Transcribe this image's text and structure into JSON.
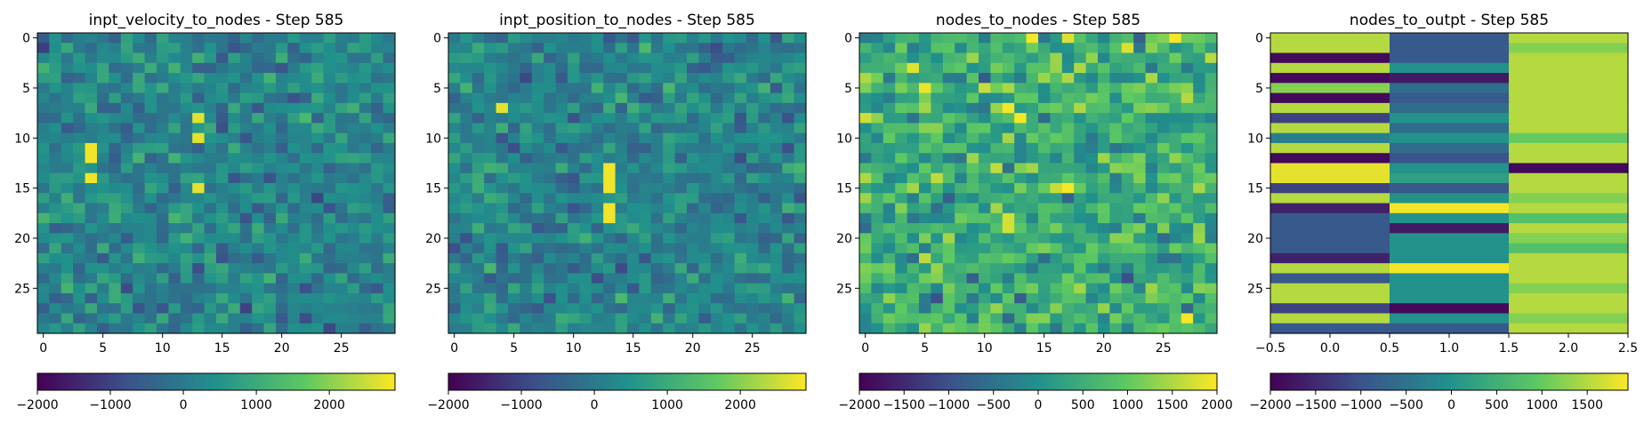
{
  "colormap": [
    "#440154",
    "#3b528b",
    "#21918c",
    "#5ec962",
    "#fde725"
  ],
  "chart_data": [
    {
      "type": "heatmap",
      "title": "inpt_velocity_to_nodes - Step 585",
      "rows": 30,
      "cols": 30,
      "xlim": [
        -0.5,
        29.5
      ],
      "ylim": [
        29.5,
        -0.5
      ],
      "x_ticks": [
        0,
        5,
        10,
        15,
        20,
        25
      ],
      "x_tick_labels": [
        "0",
        "5",
        "10",
        "15",
        "20",
        "25"
      ],
      "y_ticks": [
        0,
        5,
        10,
        15,
        20,
        25
      ],
      "y_tick_labels": [
        "0",
        "5",
        "10",
        "15",
        "20",
        "25"
      ],
      "vmin": -2000,
      "vmax": 2900,
      "mean": 200,
      "spread": 900,
      "seed": 11,
      "highlights": [
        {
          "r": 11,
          "c": 4,
          "v": 2800
        },
        {
          "r": 12,
          "c": 4,
          "v": 2800
        },
        {
          "r": 14,
          "c": 4,
          "v": 2800
        },
        {
          "r": 8,
          "c": 13,
          "v": 2700
        },
        {
          "r": 10,
          "c": 13,
          "v": 2700
        },
        {
          "r": 15,
          "c": 13,
          "v": 2700
        }
      ],
      "colorbar": {
        "ticks": [
          -2000,
          -1000,
          0,
          1000,
          2000
        ],
        "labels": [
          "−2000",
          "−1000",
          "0",
          "1000",
          "2000"
        ]
      }
    },
    {
      "type": "heatmap",
      "title": "inpt_position_to_nodes - Step 585",
      "rows": 30,
      "cols": 30,
      "xlim": [
        -0.5,
        29.5
      ],
      "ylim": [
        29.5,
        -0.5
      ],
      "x_ticks": [
        0,
        5,
        10,
        15,
        20,
        25
      ],
      "x_tick_labels": [
        "0",
        "5",
        "10",
        "15",
        "20",
        "25"
      ],
      "y_ticks": [
        0,
        5,
        10,
        15,
        20,
        25
      ],
      "y_tick_labels": [
        "0",
        "5",
        "10",
        "15",
        "20",
        "25"
      ],
      "vmin": -2000,
      "vmax": 2900,
      "mean": 200,
      "spread": 900,
      "seed": 23,
      "highlights": [
        {
          "r": 13,
          "c": 13,
          "v": 2800
        },
        {
          "r": 14,
          "c": 13,
          "v": 2800
        },
        {
          "r": 15,
          "c": 13,
          "v": 2800
        },
        {
          "r": 17,
          "c": 13,
          "v": 2800
        },
        {
          "r": 18,
          "c": 13,
          "v": 2800
        },
        {
          "r": 7,
          "c": 4,
          "v": 2700
        }
      ],
      "colorbar": {
        "ticks": [
          -2000,
          -1000,
          0,
          1000,
          2000
        ],
        "labels": [
          "−2000",
          "−1000",
          "0",
          "1000",
          "2000"
        ]
      }
    },
    {
      "type": "heatmap",
      "title": "nodes_to_nodes - Step 585",
      "rows": 30,
      "cols": 30,
      "xlim": [
        -0.5,
        29.5
      ],
      "ylim": [
        29.5,
        -0.5
      ],
      "x_ticks": [
        0,
        5,
        10,
        15,
        20,
        25
      ],
      "x_tick_labels": [
        "0",
        "5",
        "10",
        "15",
        "20",
        "25"
      ],
      "y_ticks": [
        0,
        5,
        10,
        15,
        20,
        25
      ],
      "y_tick_labels": [
        "0",
        "5",
        "10",
        "15",
        "20",
        "25"
      ],
      "vmin": -2000,
      "vmax": 2000,
      "mean": 500,
      "spread": 1100,
      "seed": 37,
      "highlights": [
        {
          "r": 7,
          "c": 12,
          "v": 1950
        },
        {
          "r": 8,
          "c": 13,
          "v": 1950
        },
        {
          "r": 15,
          "c": 17,
          "v": 1950
        },
        {
          "r": 0,
          "c": 14,
          "v": 1950
        },
        {
          "r": 0,
          "c": 26,
          "v": 1950
        },
        {
          "r": 28,
          "c": 27,
          "v": 1950
        }
      ],
      "colorbar": {
        "ticks": [
          -2000,
          -1500,
          -1000,
          -500,
          0,
          500,
          1000,
          1500,
          2000
        ],
        "labels": [
          "−2000",
          "−1500",
          "−1000",
          "−500",
          "0",
          "500",
          "1000",
          "1500",
          "2000"
        ]
      }
    },
    {
      "type": "heatmap",
      "title": "nodes_to_outpt - Step 585",
      "rows": 30,
      "cols": 3,
      "xlim": [
        -0.5,
        2.5
      ],
      "ylim": [
        29.5,
        -0.5
      ],
      "x_ticks": [
        -0.5,
        0.0,
        0.5,
        1.0,
        1.5,
        2.0,
        2.5
      ],
      "x_tick_labels": [
        "−0.5",
        "0.0",
        "0.5",
        "1.0",
        "1.5",
        "2.0",
        "2.5"
      ],
      "y_ticks": [
        0,
        5,
        10,
        15,
        20,
        25
      ],
      "y_tick_labels": [
        "0",
        "5",
        "10",
        "15",
        "20",
        "25"
      ],
      "vmin": -2000,
      "vmax": 1950,
      "values": [
        [
          1500,
          -900,
          1500
        ],
        [
          1500,
          -900,
          1200
        ],
        [
          -1900,
          -900,
          1500
        ],
        [
          1500,
          0,
          1500
        ],
        [
          -1900,
          -1700,
          1500
        ],
        [
          1200,
          -600,
          1500
        ],
        [
          -1900,
          -900,
          1500
        ],
        [
          1500,
          -600,
          1500
        ],
        [
          -1200,
          0,
          1500
        ],
        [
          1500,
          -600,
          1500
        ],
        [
          -300,
          0,
          1000
        ],
        [
          1500,
          -600,
          1500
        ],
        [
          -1900,
          -1000,
          1500
        ],
        [
          1800,
          0,
          -1900
        ],
        [
          1800,
          200,
          1500
        ],
        [
          -1200,
          -900,
          1500
        ],
        [
          1500,
          0,
          1200
        ],
        [
          -1600,
          1900,
          1500
        ],
        [
          -900,
          0,
          800
        ],
        [
          -900,
          -1700,
          1500
        ],
        [
          -900,
          0,
          1200
        ],
        [
          -900,
          0,
          800
        ],
        [
          -1600,
          0,
          1500
        ],
        [
          1500,
          1900,
          1500
        ],
        [
          -900,
          0,
          1500
        ],
        [
          1500,
          0,
          1200
        ],
        [
          1500,
          0,
          1500
        ],
        [
          -1200,
          -1900,
          1500
        ],
        [
          1500,
          0,
          1200
        ],
        [
          -900,
          -900,
          1500
        ]
      ],
      "colorbar": {
        "ticks": [
          -2000,
          -1500,
          -1000,
          -500,
          0,
          500,
          1000,
          1500
        ],
        "labels": [
          "−2000",
          "−1500",
          "−1000",
          "−500",
          "0",
          "500",
          "1000",
          "1500"
        ]
      }
    }
  ]
}
